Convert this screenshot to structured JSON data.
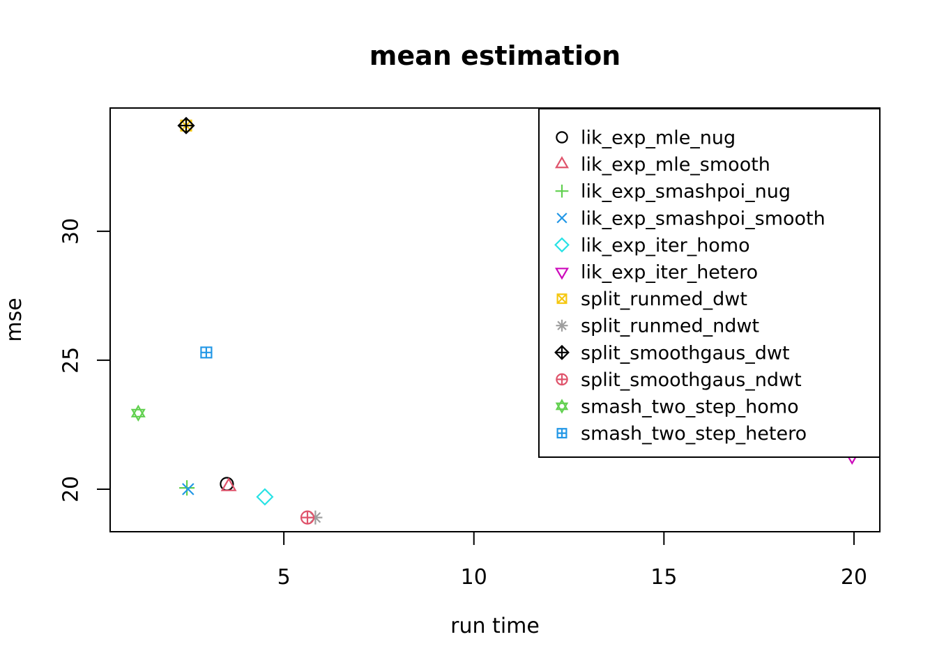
{
  "chart_data": {
    "type": "scatter",
    "title": "mean estimation",
    "xlabel": "run time",
    "ylabel": "mse",
    "x_ticks": [
      5,
      10,
      15,
      20
    ],
    "y_ticks": [
      20,
      25,
      30
    ],
    "xlim": [
      0.43,
      20.68
    ],
    "ylim": [
      18.35,
      34.78
    ],
    "grid": false,
    "legend_position": "top-right",
    "series": [
      {
        "name": "lik_exp_mle_nug",
        "pch": "circle",
        "color": "#000000",
        "points": [
          [
            3.5,
            20.2
          ]
        ]
      },
      {
        "name": "lik_exp_mle_smooth",
        "pch": "triangle-up",
        "color": "#DF536B",
        "points": [
          [
            3.55,
            20.1
          ]
        ]
      },
      {
        "name": "lik_exp_smashpoi_nug",
        "pch": "plus",
        "color": "#61D04F",
        "points": [
          [
            2.45,
            20.05
          ]
        ]
      },
      {
        "name": "lik_exp_smashpoi_smooth",
        "pch": "x-cross",
        "color": "#2297E6",
        "points": [
          [
            2.48,
            20.0
          ]
        ]
      },
      {
        "name": "lik_exp_iter_homo",
        "pch": "diamond",
        "color": "#28E2E5",
        "points": [
          [
            4.5,
            19.7
          ]
        ]
      },
      {
        "name": "lik_exp_iter_hetero",
        "pch": "triangle-down",
        "color": "#CD0BBC",
        "points": [
          [
            19.95,
            21.3
          ]
        ]
      },
      {
        "name": "split_runmed_dwt",
        "pch": "square-x",
        "color": "#F5C710",
        "points": [
          [
            2.43,
            34.1
          ]
        ]
      },
      {
        "name": "split_runmed_ndwt",
        "pch": "asterisk",
        "color": "#9E9E9E",
        "points": [
          [
            5.83,
            18.9
          ]
        ]
      },
      {
        "name": "split_smoothgaus_dwt",
        "pch": "diamond-plus",
        "color": "#000000",
        "points": [
          [
            2.43,
            34.1
          ]
        ]
      },
      {
        "name": "split_smoothgaus_ndwt",
        "pch": "circle-plus",
        "color": "#DF536B",
        "points": [
          [
            5.62,
            18.9
          ]
        ]
      },
      {
        "name": "smash_two_step_homo",
        "pch": "star-of-david",
        "color": "#61D04F",
        "points": [
          [
            1.17,
            22.95
          ]
        ]
      },
      {
        "name": "smash_two_step_hetero",
        "pch": "square-plus",
        "color": "#2297E6",
        "points": [
          [
            2.96,
            25.3
          ]
        ]
      }
    ],
    "axis_color": "#000000",
    "background_color": "#ffffff"
  }
}
